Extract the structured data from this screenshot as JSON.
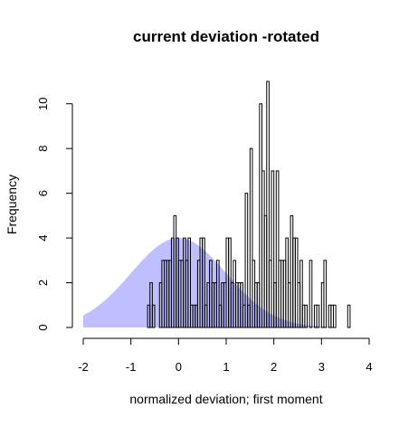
{
  "chart_data": {
    "type": "bar",
    "title": "current deviation -rotated",
    "xlabel": "normalized deviation; first moment",
    "ylabel": "Frequency",
    "xlim": [
      -2,
      4
    ],
    "ylim": [
      0,
      11
    ],
    "x_ticks": [
      -2,
      -1,
      0,
      1,
      2,
      3,
      4
    ],
    "x_tick_labels": [
      "-2",
      "-1",
      "0",
      "1",
      "2",
      "3",
      "4"
    ],
    "y_ticks": [
      0,
      2,
      4,
      6,
      8,
      10
    ],
    "y_tick_labels": [
      "0",
      "2",
      "4",
      "6",
      "8",
      "10"
    ],
    "bin_start": -0.7,
    "bin_width": 0.05,
    "counts": [
      0,
      1,
      2,
      1,
      0,
      0,
      2,
      3,
      3,
      3,
      3,
      4,
      5,
      4,
      3,
      3,
      4,
      3,
      4,
      1,
      1,
      1,
      3,
      4,
      4,
      1,
      2,
      3,
      2,
      2,
      3,
      1,
      2,
      2,
      4,
      4,
      2,
      3,
      2,
      2,
      2,
      1,
      6,
      1,
      8,
      3,
      2,
      2,
      10,
      7,
      5,
      11,
      3,
      7,
      2,
      7,
      3,
      3,
      3,
      4,
      2,
      5,
      4,
      4,
      2,
      3,
      1,
      1,
      0,
      3,
      0,
      1,
      1,
      0,
      2,
      3,
      0,
      1,
      1,
      1,
      0,
      0,
      0,
      0,
      0,
      1
    ],
    "reference_curve": {
      "type": "normal-density",
      "mean": 0,
      "sd": 1,
      "peak_frequency": 4,
      "x_range": [
        -2,
        3.2
      ],
      "fill_color": "#b8b8ff"
    },
    "bar_border_color": "#000000",
    "bar_fill": "none",
    "grid": false,
    "legend": "none"
  }
}
